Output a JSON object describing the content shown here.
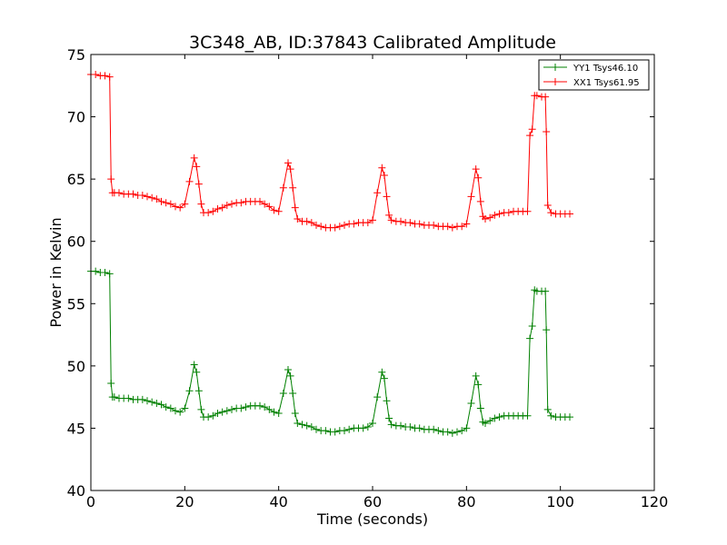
{
  "chart_data": {
    "type": "line",
    "title": "3C348_AB, ID:37843 Calibrated Amplitude",
    "xlabel": "Time (seconds)",
    "ylabel": "Power in Kelvin",
    "xlim": [
      0,
      120
    ],
    "ylim": [
      40,
      75
    ],
    "xticks": [
      0,
      20,
      40,
      60,
      80,
      100,
      120
    ],
    "yticks": [
      40,
      45,
      50,
      55,
      60,
      65,
      70,
      75
    ],
    "grid": false,
    "legend_position": "top-right",
    "marker": "+",
    "series": [
      {
        "name": "YY1 Tsys46.10",
        "color": "#008000",
        "points": [
          [
            0,
            57.6
          ],
          [
            1,
            57.6
          ],
          [
            2,
            57.5
          ],
          [
            3,
            57.5
          ],
          [
            4,
            57.4
          ],
          [
            4.3,
            48.6
          ],
          [
            4.6,
            47.5
          ],
          [
            5,
            47.5
          ],
          [
            6,
            47.4
          ],
          [
            7,
            47.4
          ],
          [
            8,
            47.4
          ],
          [
            9,
            47.3
          ],
          [
            10,
            47.3
          ],
          [
            11,
            47.3
          ],
          [
            12,
            47.2
          ],
          [
            13,
            47.1
          ],
          [
            14,
            47.0
          ],
          [
            15,
            46.9
          ],
          [
            16,
            46.7
          ],
          [
            17,
            46.6
          ],
          [
            18,
            46.4
          ],
          [
            19,
            46.3
          ],
          [
            20,
            46.6
          ],
          [
            21,
            48.0
          ],
          [
            22,
            50.1
          ],
          [
            22.5,
            49.5
          ],
          [
            23,
            48.0
          ],
          [
            23.5,
            46.5
          ],
          [
            24,
            45.9
          ],
          [
            25,
            45.9
          ],
          [
            26,
            46.0
          ],
          [
            27,
            46.2
          ],
          [
            28,
            46.3
          ],
          [
            29,
            46.4
          ],
          [
            30,
            46.5
          ],
          [
            31,
            46.6
          ],
          [
            32,
            46.6
          ],
          [
            33,
            46.7
          ],
          [
            34,
            46.8
          ],
          [
            35,
            46.8
          ],
          [
            36,
            46.8
          ],
          [
            37,
            46.7
          ],
          [
            38,
            46.5
          ],
          [
            39,
            46.3
          ],
          [
            40,
            46.2
          ],
          [
            41,
            47.8
          ],
          [
            42,
            49.7
          ],
          [
            42.5,
            49.2
          ],
          [
            43,
            47.8
          ],
          [
            43.5,
            46.2
          ],
          [
            44,
            45.4
          ],
          [
            45,
            45.3
          ],
          [
            46,
            45.2
          ],
          [
            47,
            45.1
          ],
          [
            48,
            44.9
          ],
          [
            49,
            44.8
          ],
          [
            50,
            44.8
          ],
          [
            51,
            44.7
          ],
          [
            52,
            44.7
          ],
          [
            53,
            44.8
          ],
          [
            54,
            44.8
          ],
          [
            55,
            44.9
          ],
          [
            56,
            45.0
          ],
          [
            57,
            45.0
          ],
          [
            58,
            45.0
          ],
          [
            59,
            45.1
          ],
          [
            60,
            45.4
          ],
          [
            61,
            47.5
          ],
          [
            62,
            49.5
          ],
          [
            62.5,
            49.0
          ],
          [
            63,
            47.2
          ],
          [
            63.5,
            45.8
          ],
          [
            64,
            45.3
          ],
          [
            65,
            45.2
          ],
          [
            66,
            45.2
          ],
          [
            67,
            45.1
          ],
          [
            68,
            45.1
          ],
          [
            69,
            45.0
          ],
          [
            70,
            45.0
          ],
          [
            71,
            44.9
          ],
          [
            72,
            44.9
          ],
          [
            73,
            44.9
          ],
          [
            74,
            44.8
          ],
          [
            75,
            44.7
          ],
          [
            76,
            44.7
          ],
          [
            77,
            44.6
          ],
          [
            78,
            44.7
          ],
          [
            79,
            44.8
          ],
          [
            80,
            45.0
          ],
          [
            81,
            47.0
          ],
          [
            82,
            49.2
          ],
          [
            82.5,
            48.5
          ],
          [
            83,
            46.6
          ],
          [
            83.5,
            45.5
          ],
          [
            84,
            45.4
          ],
          [
            85,
            45.6
          ],
          [
            86,
            45.8
          ],
          [
            87,
            45.9
          ],
          [
            88,
            46.0
          ],
          [
            89,
            46.0
          ],
          [
            90,
            46.0
          ],
          [
            91,
            46.0
          ],
          [
            92,
            46.0
          ],
          [
            93,
            46.0
          ],
          [
            93.5,
            52.2
          ],
          [
            94,
            53.2
          ],
          [
            94.5,
            56.1
          ],
          [
            95,
            56.0
          ],
          [
            96,
            56.0
          ],
          [
            96.8,
            56.0
          ],
          [
            97,
            52.9
          ],
          [
            97.3,
            46.5
          ],
          [
            98,
            46.0
          ],
          [
            99,
            45.9
          ],
          [
            100,
            45.9
          ],
          [
            101,
            45.9
          ],
          [
            102,
            45.9
          ]
        ]
      },
      {
        "name": "XX1 Tsys61.95",
        "color": "#ff0000",
        "points": [
          [
            0,
            73.4
          ],
          [
            1,
            73.4
          ],
          [
            2,
            73.3
          ],
          [
            3,
            73.3
          ],
          [
            4,
            73.2
          ],
          [
            4.3,
            65.0
          ],
          [
            4.6,
            63.9
          ],
          [
            5,
            63.9
          ],
          [
            6,
            63.9
          ],
          [
            7,
            63.8
          ],
          [
            8,
            63.8
          ],
          [
            9,
            63.8
          ],
          [
            10,
            63.7
          ],
          [
            11,
            63.7
          ],
          [
            12,
            63.6
          ],
          [
            13,
            63.5
          ],
          [
            14,
            63.4
          ],
          [
            15,
            63.2
          ],
          [
            16,
            63.1
          ],
          [
            17,
            63.0
          ],
          [
            18,
            62.8
          ],
          [
            19,
            62.7
          ],
          [
            20,
            63.0
          ],
          [
            21,
            64.8
          ],
          [
            22,
            66.7
          ],
          [
            22.5,
            66.0
          ],
          [
            23,
            64.6
          ],
          [
            23.5,
            63.0
          ],
          [
            24,
            62.3
          ],
          [
            25,
            62.3
          ],
          [
            26,
            62.4
          ],
          [
            27,
            62.6
          ],
          [
            28,
            62.7
          ],
          [
            29,
            62.9
          ],
          [
            30,
            63.0
          ],
          [
            31,
            63.1
          ],
          [
            32,
            63.1
          ],
          [
            33,
            63.2
          ],
          [
            34,
            63.2
          ],
          [
            35,
            63.2
          ],
          [
            36,
            63.2
          ],
          [
            37,
            63.0
          ],
          [
            38,
            62.8
          ],
          [
            39,
            62.5
          ],
          [
            40,
            62.4
          ],
          [
            41,
            64.3
          ],
          [
            42,
            66.3
          ],
          [
            42.5,
            65.8
          ],
          [
            43,
            64.3
          ],
          [
            43.5,
            62.7
          ],
          [
            44,
            61.8
          ],
          [
            45,
            61.6
          ],
          [
            46,
            61.6
          ],
          [
            47,
            61.5
          ],
          [
            48,
            61.3
          ],
          [
            49,
            61.2
          ],
          [
            50,
            61.1
          ],
          [
            51,
            61.1
          ],
          [
            52,
            61.1
          ],
          [
            53,
            61.2
          ],
          [
            54,
            61.3
          ],
          [
            55,
            61.4
          ],
          [
            56,
            61.4
          ],
          [
            57,
            61.5
          ],
          [
            58,
            61.5
          ],
          [
            59,
            61.5
          ],
          [
            60,
            61.7
          ],
          [
            61,
            63.9
          ],
          [
            62,
            65.9
          ],
          [
            62.5,
            65.3
          ],
          [
            63,
            63.6
          ],
          [
            63.5,
            62.1
          ],
          [
            64,
            61.7
          ],
          [
            65,
            61.6
          ],
          [
            66,
            61.6
          ],
          [
            67,
            61.5
          ],
          [
            68,
            61.5
          ],
          [
            69,
            61.4
          ],
          [
            70,
            61.4
          ],
          [
            71,
            61.3
          ],
          [
            72,
            61.3
          ],
          [
            73,
            61.3
          ],
          [
            74,
            61.2
          ],
          [
            75,
            61.2
          ],
          [
            76,
            61.2
          ],
          [
            77,
            61.1
          ],
          [
            78,
            61.2
          ],
          [
            79,
            61.2
          ],
          [
            80,
            61.4
          ],
          [
            81,
            63.6
          ],
          [
            82,
            65.8
          ],
          [
            82.5,
            65.1
          ],
          [
            83,
            63.2
          ],
          [
            83.5,
            62.0
          ],
          [
            84,
            61.8
          ],
          [
            85,
            61.9
          ],
          [
            86,
            62.1
          ],
          [
            87,
            62.2
          ],
          [
            88,
            62.3
          ],
          [
            89,
            62.3
          ],
          [
            90,
            62.4
          ],
          [
            91,
            62.4
          ],
          [
            92,
            62.4
          ],
          [
            93,
            62.4
          ],
          [
            93.5,
            68.5
          ],
          [
            94,
            69.0
          ],
          [
            94.5,
            71.7
          ],
          [
            95,
            71.7
          ],
          [
            96,
            71.6
          ],
          [
            96.8,
            71.6
          ],
          [
            97,
            68.8
          ],
          [
            97.3,
            62.9
          ],
          [
            98,
            62.3
          ],
          [
            99,
            62.2
          ],
          [
            100,
            62.2
          ],
          [
            101,
            62.2
          ],
          [
            102,
            62.2
          ]
        ]
      }
    ]
  }
}
